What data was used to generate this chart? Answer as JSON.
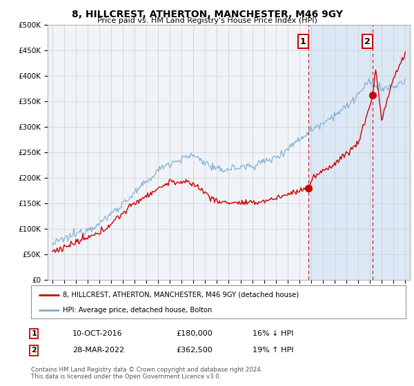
{
  "title": "8, HILLCREST, ATHERTON, MANCHESTER, M46 9GY",
  "subtitle": "Price paid vs. HM Land Registry's House Price Index (HPI)",
  "ylabel_ticks": [
    "£0",
    "£50K",
    "£100K",
    "£150K",
    "£200K",
    "£250K",
    "£300K",
    "£350K",
    "£400K",
    "£450K",
    "£500K"
  ],
  "ytick_values": [
    0,
    50000,
    100000,
    150000,
    200000,
    250000,
    300000,
    350000,
    400000,
    450000,
    500000
  ],
  "ylim": [
    0,
    500000
  ],
  "x_start_year": 1995,
  "x_end_year": 2025,
  "hpi_color": "#7aaad4",
  "price_color": "#cc0000",
  "sale1_year": 2016.78,
  "sale1_price": 180000,
  "sale2_year": 2022.24,
  "sale2_price": 362500,
  "sale1_label": "1",
  "sale2_label": "2",
  "legend_house_label": "8, HILLCREST, ATHERTON, MANCHESTER, M46 9GY (detached house)",
  "legend_hpi_label": "HPI: Average price, detached house, Bolton",
  "table_row1": [
    "1",
    "10-OCT-2016",
    "£180,000",
    "16% ↓ HPI"
  ],
  "table_row2": [
    "2",
    "28-MAR-2022",
    "£362,500",
    "19% ↑ HPI"
  ],
  "footnote": "Contains HM Land Registry data © Crown copyright and database right 2024.\nThis data is licensed under the Open Government Licence v3.0.",
  "background_color": "#ffffff",
  "plot_bg_color": "#f0f4f8",
  "grid_color": "#cccccc",
  "shade_color": "#dce8f5"
}
